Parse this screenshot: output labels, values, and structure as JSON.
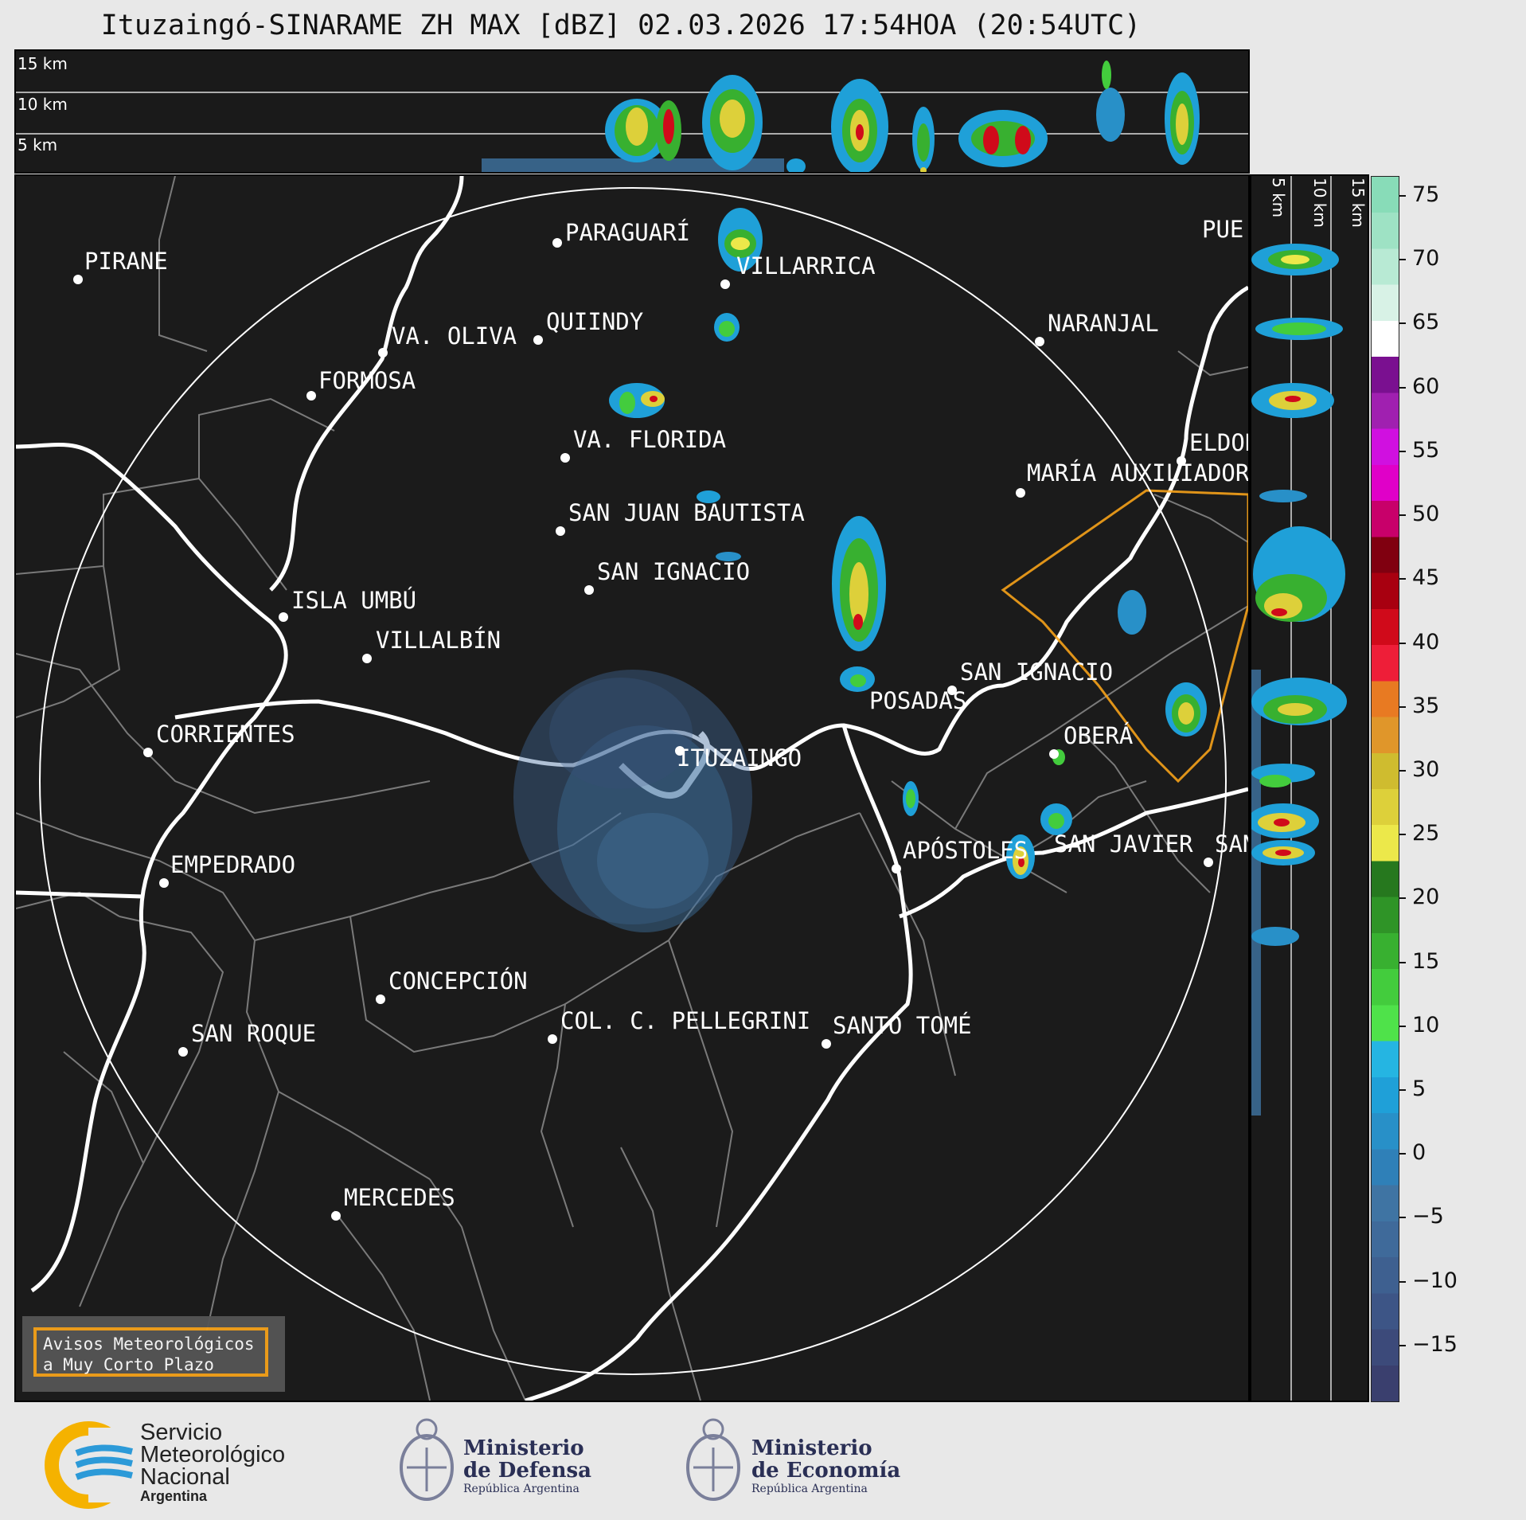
{
  "title": "Ituzaingó-SINARAME ZH MAX [dBZ] 02.03.2026 17:54HOA (20:54UTC)",
  "top_panel": {
    "altitude_labels": [
      "15 km",
      "10 km",
      "5 km"
    ]
  },
  "side_panel": {
    "altitude_labels": [
      "5 km",
      "10 km",
      "15 km"
    ]
  },
  "colorbar": {
    "unit": "dBZ",
    "ticks": [
      "75",
      "70",
      "65",
      "60",
      "55",
      "50",
      "45",
      "40",
      "35",
      "30",
      "25",
      "20",
      "15",
      "10",
      "5",
      "0",
      "−5",
      "−10",
      "−15"
    ],
    "range": [
      -19.5,
      76.5
    ],
    "colors": [
      "#3a3f6e",
      "#3c4a7a",
      "#3d5586",
      "#3e6090",
      "#3f6a9a",
      "#3f74a3",
      "#2f80b8",
      "#2890c8",
      "#1fa0d8",
      "#25b5e2",
      "#4fe24a",
      "#43cc3d",
      "#38b030",
      "#2f9427",
      "#26781e",
      "#ece84a",
      "#ddd03a",
      "#cfbc2f",
      "#e0962a",
      "#e87a22",
      "#ee1e38",
      "#d00a1a",
      "#a80010",
      "#800010",
      "#c8006a",
      "#e000c8",
      "#d010e0",
      "#a020b0",
      "#7a1090",
      "#ffffff",
      "#d8f2e6",
      "#b8ead4",
      "#9ee2c4",
      "#88dcb8"
    ]
  },
  "cities": [
    "PIRANE",
    "PARAGUARÍ",
    "VILLARRICA",
    "VA. OLIVA",
    "QUIINDY",
    "FORMOSA",
    "NARANJAL",
    "VA. FLORIDA",
    "ELDOR",
    "MARÍA AUXILIADOR",
    "SAN JUAN BAUTISTA",
    "SAN IGNACIO",
    "ISLA UMBÚ",
    "VILLALBÍN",
    "SAN IGNACIO",
    "POSADAS",
    "CORRIENTES",
    "ITUZAINGÓ",
    "OBERÁ",
    "APÓSTOLES",
    "SAN JAVIER",
    "SAN",
    "EMPEDRADO",
    "CONCEPCIÓN",
    "COL. C. PELLEGRINI",
    "SANTO TOMÉ",
    "SAN ROQUE",
    "MERCEDES",
    "PUE"
  ],
  "warning": {
    "line1": "Avisos Meteorológicos",
    "line2": "a Muy Corto Plazo"
  },
  "footer": {
    "smn": {
      "line1": "Servicio",
      "line2": "Meteorológico",
      "line3": "Nacional",
      "line4": "Argentina"
    },
    "defensa": {
      "line1": "Ministerio",
      "line2": "de Defensa",
      "line3": "República Argentina"
    },
    "economia": {
      "line1": "Ministerio",
      "line2": "de Economía",
      "line3": "República Argentina"
    }
  }
}
